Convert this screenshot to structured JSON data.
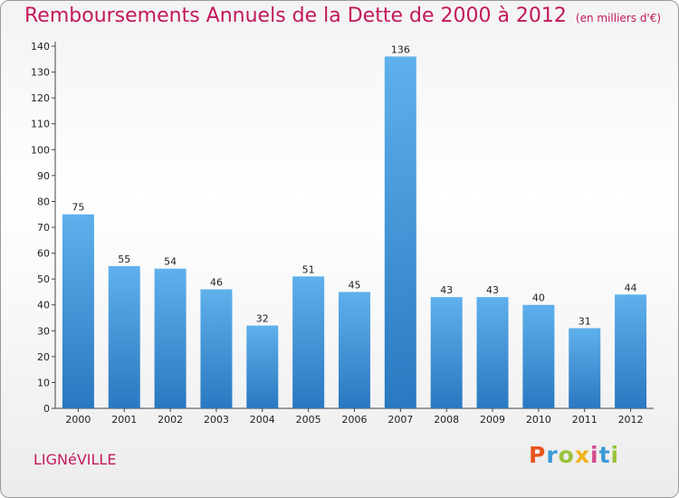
{
  "chart_data": {
    "type": "bar",
    "title": "Remboursements Annuels de la Dette de 2000 à 2012",
    "unit": "(en milliers d'€)",
    "categories": [
      "2000",
      "2001",
      "2002",
      "2003",
      "2004",
      "2005",
      "2006",
      "2007",
      "2008",
      "2009",
      "2010",
      "2011",
      "2012"
    ],
    "values": [
      75,
      55,
      54,
      46,
      32,
      51,
      45,
      136,
      43,
      43,
      40,
      31,
      44
    ],
    "ylim": [
      0,
      140
    ],
    "yticks": [
      0,
      10,
      20,
      30,
      40,
      50,
      60,
      70,
      80,
      90,
      100,
      110,
      120,
      130,
      140
    ],
    "grid": false,
    "bar_color": "#3a8fd6"
  },
  "footer": {
    "city": "LIGNéVILLE",
    "logo_letters": [
      {
        "ch": "P",
        "color": "#e8541e"
      },
      {
        "ch": "r",
        "color": "#3c9ad8"
      },
      {
        "ch": "o",
        "color": "#9bc33c"
      },
      {
        "ch": "x",
        "color": "#f2b21b"
      },
      {
        "ch": "i",
        "color": "#d64a8f"
      },
      {
        "ch": "t",
        "color": "#3c9ad8"
      },
      {
        "ch": "i",
        "color": "#9bc33c"
      }
    ]
  }
}
